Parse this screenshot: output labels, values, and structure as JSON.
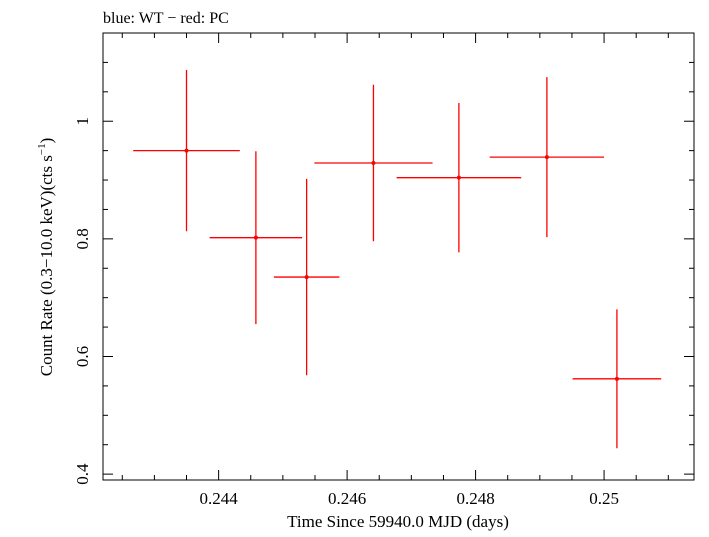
{
  "chart_data": {
    "type": "scatter",
    "title": "blue: WT − red: PC",
    "xlabel": "Time Since 59940.0 MJD (days)",
    "ylabel_main": "Count Rate (0.3−10.0 keV)(cts s",
    "ylabel_sup": "−1",
    "ylabel_close": ")",
    "xlim": [
      0.2422,
      0.2514
    ],
    "ylim": [
      0.39,
      1.15
    ],
    "xticks": [
      0.244,
      0.246,
      0.248,
      0.25
    ],
    "xtick_labels": [
      "0.244",
      "0.246",
      "0.248",
      "0.25"
    ],
    "yticks": [
      0.4,
      0.6,
      0.8,
      1.0
    ],
    "ytick_labels": [
      "0.4",
      "0.6",
      "0.8",
      "1"
    ],
    "grid": false,
    "series": [
      {
        "color": "#ff0000",
        "points": [
          {
            "x": 0.2435,
            "xerr": 0.00083,
            "y": 0.95,
            "yerr_low": 0.137,
            "yerr_high": 0.137
          },
          {
            "x": 0.24458,
            "xerr": 0.00072,
            "y": 0.802,
            "yerr_low": 0.147,
            "yerr_high": 0.147
          },
          {
            "x": 0.24537,
            "xerr": 0.00051,
            "y": 0.735,
            "yerr_low": 0.167,
            "yerr_high": 0.167
          },
          {
            "x": 0.24641,
            "xerr": 0.00092,
            "y": 0.929,
            "yerr_low": 0.133,
            "yerr_high": 0.133
          },
          {
            "x": 0.24774,
            "xerr": 0.00097,
            "y": 0.904,
            "yerr_low": 0.127,
            "yerr_high": 0.127
          },
          {
            "x": 0.24911,
            "xerr": 0.00089,
            "y": 0.939,
            "yerr_low": 0.136,
            "yerr_high": 0.136
          },
          {
            "x": 0.2502,
            "xerr": 0.00069,
            "y": 0.562,
            "yerr_low": 0.118,
            "yerr_high": 0.118
          }
        ]
      }
    ]
  }
}
